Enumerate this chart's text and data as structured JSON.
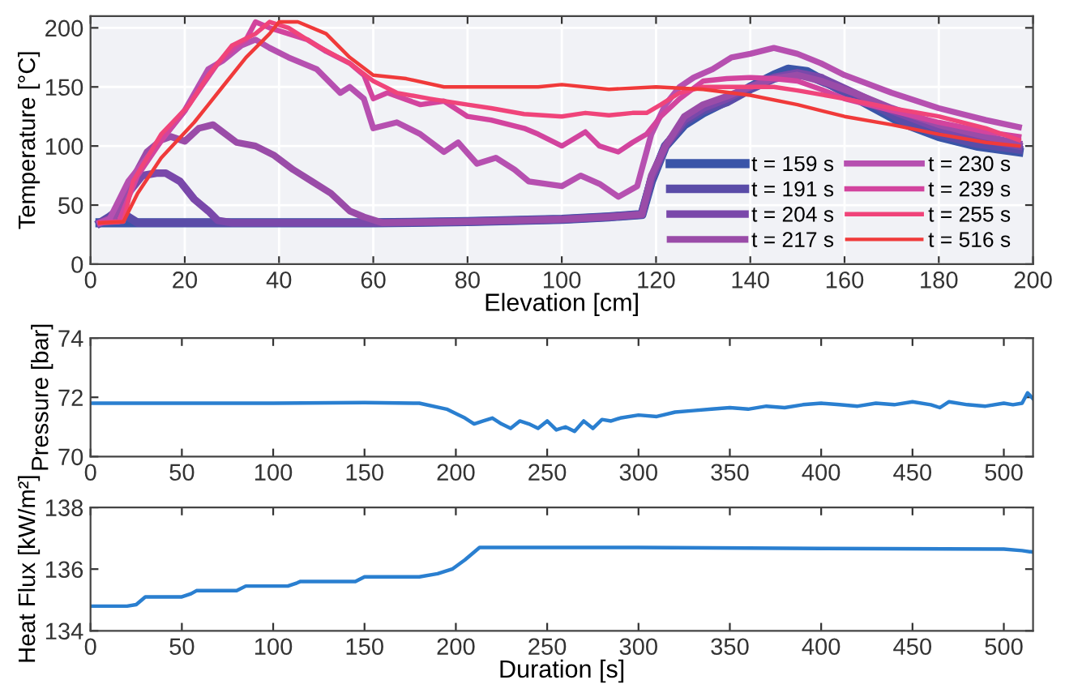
{
  "chart_data": [
    {
      "type": "line",
      "xlabel": "Elevation [cm]",
      "ylabel": "Temperature [°C]",
      "xlim": [
        0,
        200
      ],
      "ylim": [
        0,
        210
      ],
      "xticks": [
        0,
        20,
        40,
        60,
        80,
        100,
        120,
        140,
        160,
        180,
        200
      ],
      "yticks": [
        0,
        50,
        100,
        150,
        200
      ],
      "grid": true,
      "legend": "bottom right",
      "series": [
        {
          "name": "t = 159 s",
          "color": "#3a55a8",
          "x": [
            2,
            10,
            20,
            40,
            60,
            80,
            100,
            110,
            117,
            119,
            122,
            126,
            130,
            135,
            140,
            145,
            148,
            152,
            158,
            165,
            172,
            180,
            188,
            197
          ],
          "values": [
            35,
            35,
            35,
            35,
            35,
            36,
            38,
            40,
            42,
            70,
            100,
            118,
            128,
            138,
            150,
            160,
            165,
            163,
            150,
            135,
            120,
            108,
            100,
            95
          ]
        },
        {
          "name": "t = 191 s",
          "color": "#5a4ca8",
          "x": [
            2,
            4,
            6,
            8,
            10,
            20,
            40,
            60,
            80,
            100,
            110,
            117,
            119,
            122,
            126,
            130,
            135,
            140,
            145,
            148,
            152,
            158,
            165,
            172,
            180,
            188,
            197
          ],
          "values": [
            35,
            40,
            46,
            40,
            35,
            35,
            35,
            35,
            36,
            38,
            40,
            42,
            72,
            100,
            120,
            130,
            137,
            148,
            157,
            160,
            160,
            150,
            138,
            122,
            110,
            102,
            97
          ]
        },
        {
          "name": "t = 204 s",
          "color": "#7a48aa",
          "x": [
            2,
            5,
            8,
            11,
            14,
            16,
            19,
            22,
            25,
            27,
            30,
            40,
            60,
            80,
            100,
            110,
            117,
            119,
            122,
            126,
            130,
            135,
            140,
            145,
            150,
            155,
            162,
            170,
            180,
            190,
            197
          ],
          "values": [
            35,
            40,
            60,
            75,
            77,
            77,
            70,
            55,
            45,
            37,
            35,
            35,
            35,
            36,
            38,
            40,
            42,
            72,
            100,
            122,
            132,
            140,
            150,
            158,
            162,
            158,
            145,
            130,
            115,
            105,
            100
          ]
        },
        {
          "name": "t = 217 s",
          "color": "#9a4ca8",
          "x": [
            2,
            5,
            8,
            12,
            15,
            17,
            20,
            23,
            26,
            28,
            31,
            35,
            39,
            43,
            47,
            51,
            55,
            58,
            62,
            80,
            100,
            110,
            117,
            119,
            122,
            126,
            130,
            135,
            140,
            145,
            150,
            155,
            162,
            170,
            180,
            190,
            197
          ],
          "values": [
            35,
            40,
            65,
            95,
            105,
            108,
            104,
            115,
            118,
            112,
            103,
            100,
            92,
            80,
            70,
            60,
            45,
            40,
            35,
            36,
            38,
            40,
            42,
            75,
            100,
            125,
            135,
            142,
            150,
            157,
            160,
            155,
            145,
            132,
            118,
            108,
            102
          ]
        },
        {
          "name": "t = 230 s",
          "color": "#b650b0",
          "x": [
            2,
            4,
            8,
            14,
            20,
            25,
            28,
            32,
            35,
            38,
            42,
            48,
            53,
            55,
            58,
            60,
            65,
            70,
            75,
            78,
            82,
            86,
            90,
            93,
            100,
            104,
            108,
            112,
            116,
            119,
            122,
            125,
            128,
            132,
            136,
            140,
            145,
            150,
            155,
            160,
            170,
            180,
            190,
            197
          ],
          "values": [
            35,
            38,
            70,
            100,
            130,
            165,
            172,
            185,
            190,
            183,
            175,
            165,
            145,
            150,
            140,
            115,
            120,
            110,
            95,
            103,
            85,
            90,
            80,
            70,
            66,
            75,
            68,
            57,
            66,
            110,
            135,
            150,
            158,
            165,
            175,
            178,
            183,
            178,
            170,
            160,
            145,
            132,
            122,
            116
          ]
        },
        {
          "name": "t = 239 s",
          "color": "#d2449e",
          "x": [
            2,
            6,
            10,
            16,
            20,
            27,
            31,
            33,
            35,
            38,
            42,
            46,
            50,
            55,
            58,
            60,
            63,
            70,
            75,
            80,
            85,
            92,
            95,
            100,
            105,
            108,
            112,
            115,
            118,
            121,
            125,
            130,
            135,
            140,
            145,
            150,
            155,
            160,
            170,
            180,
            190,
            197
          ],
          "values": [
            35,
            36,
            75,
            110,
            130,
            170,
            185,
            190,
            205,
            200,
            195,
            190,
            180,
            170,
            160,
            140,
            145,
            135,
            138,
            125,
            122,
            115,
            110,
            100,
            112,
            100,
            95,
            103,
            110,
            125,
            140,
            155,
            157,
            158,
            157,
            155,
            148,
            140,
            130,
            120,
            112,
            108
          ]
        },
        {
          "name": "t = 255 s",
          "color": "#f0447a",
          "x": [
            2,
            7,
            9,
            15,
            21,
            25,
            30,
            35,
            38,
            42,
            48,
            55,
            60,
            65,
            72,
            80,
            85,
            92,
            100,
            105,
            110,
            115,
            118,
            121,
            125,
            130,
            135,
            140,
            145,
            150,
            160,
            170,
            180,
            190,
            197
          ],
          "values": [
            35,
            36,
            70,
            110,
            135,
            160,
            185,
            195,
            205,
            200,
            185,
            170,
            155,
            145,
            140,
            135,
            132,
            127,
            125,
            128,
            126,
            128,
            128,
            135,
            145,
            150,
            150,
            150,
            150,
            147,
            140,
            132,
            125,
            115,
            105
          ]
        },
        {
          "name": "t = 516 s",
          "color": "#f03a3a",
          "x": [
            2,
            7,
            10,
            15,
            22,
            28,
            33,
            38,
            40,
            44,
            50,
            55,
            60,
            67,
            75,
            85,
            95,
            100,
            110,
            120,
            130,
            140,
            150,
            160,
            170,
            180,
            190,
            197
          ],
          "values": [
            35,
            36,
            60,
            90,
            120,
            150,
            175,
            195,
            205,
            205,
            195,
            175,
            160,
            157,
            150,
            150,
            150,
            152,
            148,
            150,
            148,
            143,
            135,
            125,
            118,
            110,
            103,
            100
          ]
        }
      ]
    },
    {
      "type": "line",
      "ylabel": "Pressure [bar]",
      "xlim": [
        0,
        516
      ],
      "ylim": [
        70,
        74
      ],
      "xticks": [
        0,
        50,
        100,
        150,
        200,
        250,
        300,
        350,
        400,
        450,
        500
      ],
      "yticks": [
        70,
        72,
        74
      ],
      "grid": false,
      "series": [
        {
          "color": "#2a7fd0",
          "x": [
            0,
            50,
            100,
            150,
            180,
            195,
            205,
            210,
            215,
            220,
            225,
            230,
            235,
            240,
            245,
            250,
            255,
            260,
            265,
            270,
            275,
            280,
            285,
            290,
            300,
            310,
            320,
            330,
            340,
            350,
            360,
            370,
            380,
            390,
            400,
            410,
            420,
            430,
            440,
            450,
            460,
            465,
            470,
            480,
            490,
            500,
            505,
            510,
            513,
            516
          ],
          "values": [
            71.8,
            71.8,
            71.8,
            71.82,
            71.8,
            71.6,
            71.3,
            71.1,
            71.2,
            71.3,
            71.1,
            70.95,
            71.2,
            71.1,
            70.95,
            71.2,
            70.9,
            71.0,
            70.85,
            71.2,
            70.95,
            71.25,
            71.2,
            71.3,
            71.4,
            71.35,
            71.5,
            71.55,
            71.6,
            71.65,
            71.6,
            71.7,
            71.65,
            71.75,
            71.8,
            71.75,
            71.7,
            71.8,
            71.75,
            71.85,
            71.75,
            71.65,
            71.85,
            71.75,
            71.7,
            71.8,
            71.75,
            71.8,
            72.15,
            71.95
          ]
        }
      ]
    },
    {
      "type": "line",
      "xlabel": "Duration [s]",
      "ylabel": "Heat Flux [kW/m²]",
      "xlim": [
        0,
        516
      ],
      "ylim": [
        134,
        138
      ],
      "xticks": [
        0,
        50,
        100,
        150,
        200,
        250,
        300,
        350,
        400,
        450,
        500
      ],
      "yticks": [
        134,
        136,
        138
      ],
      "grid": false,
      "series": [
        {
          "color": "#2a7fd0",
          "x": [
            0,
            20,
            25,
            30,
            50,
            55,
            58,
            80,
            85,
            108,
            113,
            115,
            145,
            150,
            180,
            190,
            198,
            205,
            213,
            220,
            300,
            400,
            500,
            510,
            516
          ],
          "values": [
            134.8,
            134.8,
            134.85,
            135.1,
            135.1,
            135.2,
            135.3,
            135.3,
            135.45,
            135.45,
            135.55,
            135.6,
            135.6,
            135.75,
            135.75,
            135.85,
            136.0,
            136.3,
            136.7,
            136.7,
            136.7,
            136.67,
            136.65,
            136.6,
            136.55
          ]
        }
      ]
    }
  ]
}
